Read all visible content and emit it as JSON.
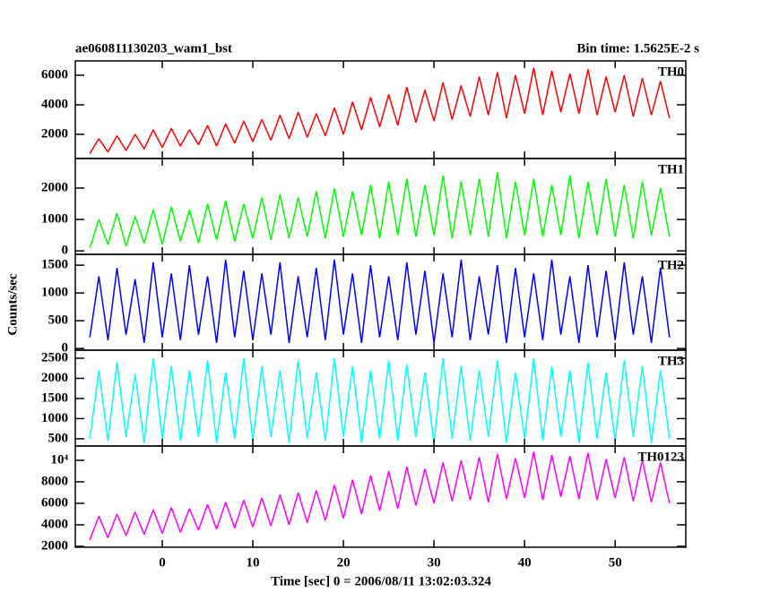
{
  "header": {
    "title": "ae060811130203_wam1_bst",
    "bin_time": "Bin time: 1.5625E-2 s"
  },
  "ylabel": "Counts/sec",
  "xlabel": "Time [sec] 0 = 2006/08/11 13:02:03.324",
  "xlim": [
    -9.6,
    57.8
  ],
  "xticks": [
    0,
    10,
    20,
    30,
    40,
    50
  ],
  "x": [
    -8,
    -7,
    -6,
    -5,
    -4,
    -3,
    -2,
    -1,
    0,
    1,
    2,
    3,
    4,
    5,
    6,
    7,
    8,
    9,
    10,
    11,
    12,
    13,
    14,
    15,
    16,
    17,
    18,
    19,
    20,
    21,
    22,
    23,
    24,
    25,
    26,
    27,
    28,
    29,
    30,
    31,
    32,
    33,
    34,
    35,
    36,
    37,
    38,
    39,
    40,
    41,
    42,
    43,
    44,
    45,
    46,
    47,
    48,
    49,
    50,
    51,
    52,
    53,
    54,
    55,
    56
  ],
  "chart_data": [
    {
      "type": "line",
      "name": "TH0",
      "color": "#ff0000",
      "ylim": [
        360,
        6970
      ],
      "yticks": [
        2000,
        4000,
        6000
      ],
      "values": [
        700,
        1700,
        800,
        1900,
        900,
        2000,
        1000,
        2300,
        1100,
        2400,
        1200,
        2300,
        1300,
        2600,
        1200,
        2700,
        1400,
        2900,
        1500,
        3000,
        1600,
        3300,
        1700,
        3500,
        1800,
        3400,
        1900,
        3800,
        2000,
        4200,
        2300,
        4500,
        2500,
        4700,
        2600,
        5200,
        2800,
        5000,
        2900,
        5500,
        3000,
        5300,
        3200,
        5900,
        3300,
        6200,
        3100,
        6000,
        3400,
        6500,
        3300,
        6300,
        3500,
        6100,
        3400,
        6400,
        3300,
        5900,
        3500,
        6000,
        3200,
        5800,
        3300,
        5600,
        3100
      ]
    },
    {
      "type": "line",
      "name": "TH1",
      "color": "#00ff00",
      "ylim": [
        -110,
        2940
      ],
      "yticks": [
        0,
        1000,
        2000
      ],
      "values": [
        100,
        1000,
        200,
        1200,
        150,
        1100,
        250,
        1300,
        200,
        1400,
        300,
        1300,
        250,
        1500,
        350,
        1600,
        300,
        1500,
        400,
        1700,
        350,
        1800,
        400,
        1700,
        450,
        1900,
        400,
        2000,
        450,
        1900,
        500,
        2100,
        400,
        2200,
        500,
        2300,
        450,
        2100,
        500,
        2400,
        400,
        2200,
        500,
        2300,
        450,
        2500,
        400,
        2200,
        500,
        2300,
        450,
        2100,
        500,
        2400,
        400,
        2200,
        500,
        2300,
        450,
        2100,
        400,
        2200,
        500,
        2000,
        450
      ]
    },
    {
      "type": "line",
      "name": "TH2",
      "color": "#0000ff",
      "ylim": [
        -30,
        1695
      ],
      "yticks": [
        0,
        500,
        1000,
        1500
      ],
      "values": [
        200,
        1300,
        150,
        1450,
        250,
        1250,
        100,
        1550,
        200,
        1350,
        150,
        1500,
        250,
        1300,
        100,
        1600,
        200,
        1400,
        150,
        1350,
        250,
        1550,
        100,
        1300,
        200,
        1450,
        150,
        1600,
        250,
        1350,
        100,
        1500,
        200,
        1300,
        150,
        1550,
        250,
        1400,
        100,
        1350,
        200,
        1600,
        150,
        1300,
        250,
        1500,
        100,
        1450,
        200,
        1350,
        150,
        1600,
        250,
        1300,
        100,
        1500,
        200,
        1400,
        150,
        1550,
        250,
        1300,
        100,
        1450,
        200
      ]
    },
    {
      "type": "line",
      "name": "TH3",
      "color": "#00ffff",
      "ylim": [
        320,
        2700
      ],
      "yticks": [
        500,
        1000,
        1500,
        2000,
        2500
      ],
      "values": [
        500,
        2200,
        450,
        2400,
        550,
        2100,
        400,
        2500,
        500,
        2300,
        450,
        2200,
        550,
        2450,
        400,
        2150,
        500,
        2500,
        450,
        2300,
        550,
        2200,
        400,
        2450,
        500,
        2150,
        450,
        2500,
        550,
        2300,
        400,
        2200,
        500,
        2450,
        450,
        2350,
        550,
        2150,
        400,
        2500,
        500,
        2300,
        450,
        2200,
        550,
        2450,
        400,
        2150,
        500,
        2500,
        450,
        2300,
        550,
        2200,
        400,
        2400,
        500,
        2150,
        450,
        2450,
        550,
        2300,
        400,
        2200,
        500
      ]
    },
    {
      "type": "line",
      "name": "TH0123",
      "color": "#ff00ff",
      "ylim": [
        1920,
        11330
      ],
      "yticks": [
        2000,
        4000,
        6000,
        8000,
        {
          "value": 10000,
          "label": "10⁴"
        }
      ],
      "values": [
        2600,
        4800,
        2800,
        5000,
        3000,
        5200,
        3100,
        5400,
        3200,
        5600,
        3300,
        5500,
        3500,
        5900,
        3600,
        6100,
        3700,
        6300,
        3800,
        6500,
        3900,
        6800,
        4000,
        7000,
        4200,
        7200,
        4400,
        7700,
        4600,
        8200,
        5000,
        8600,
        5300,
        9000,
        5500,
        9400,
        5800,
        9200,
        6000,
        9800,
        6200,
        10000,
        6300,
        10300,
        6100,
        10600,
        6400,
        10200,
        6500,
        10800,
        6300,
        10500,
        6600,
        10400,
        6400,
        10700,
        6300,
        10100,
        6500,
        10300,
        6200,
        10000,
        6100,
        9800,
        6000
      ]
    }
  ]
}
